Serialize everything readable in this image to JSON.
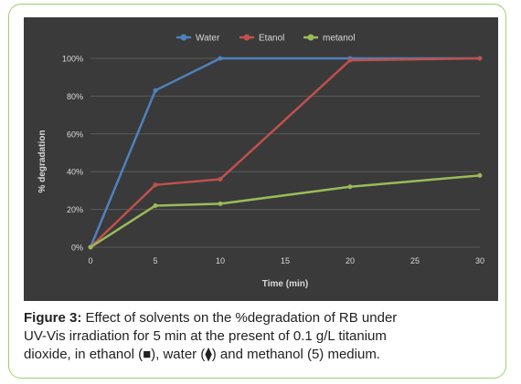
{
  "chart_data": {
    "type": "line",
    "x": [
      0,
      5,
      10,
      20,
      30
    ],
    "x_ticks": [
      "0",
      "5",
      "10",
      "15",
      "20",
      "25",
      "30"
    ],
    "y_ticks": [
      "0%",
      "20%",
      "40%",
      "60%",
      "80%",
      "100%"
    ],
    "xlim": [
      0,
      30
    ],
    "ylim": [
      0,
      100
    ],
    "xlabel": "Time (min)",
    "ylabel": "% degradation",
    "legend_position": "top",
    "series": [
      {
        "name": "Water",
        "color": "#4f81bd",
        "marker": "circle",
        "values": [
          0,
          83,
          100,
          100,
          100
        ]
      },
      {
        "name": "Etanol",
        "color": "#c0504d",
        "marker": "circle",
        "values": [
          0,
          33,
          36,
          99,
          100
        ]
      },
      {
        "name": "metanol",
        "color": "#9bbb59",
        "marker": "circle",
        "values": [
          0,
          22,
          23,
          32,
          38
        ]
      }
    ]
  },
  "caption": {
    "label": "Figure 3:",
    "line1": " Effect of solvents on the %degradation of RB under",
    "line2": "UV-Vis irradiation for 5 min at the present of 0.1 g/L titanium",
    "line3": "dioxide, in ethanol (■), water (⧫) and methanol (5) medium."
  },
  "colors": {
    "plot_background": "#3a3a3a",
    "text": "#d9d9d9",
    "frame_border": "#9fcf6a"
  }
}
